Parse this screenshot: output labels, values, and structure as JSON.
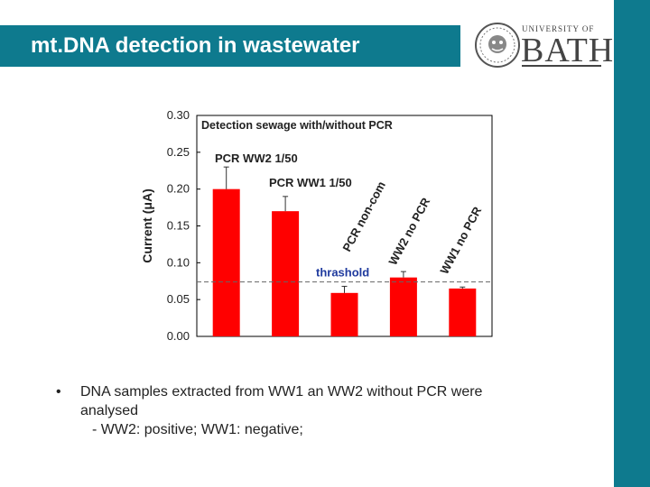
{
  "slide": {
    "title": "mt.DNA detection in wastewater",
    "logo": {
      "top_text": "UNIVERSITY OF",
      "main_text": "BATH"
    }
  },
  "bullets": {
    "marker": "•",
    "line1": "DNA samples extracted from WW1 an WW2 without PCR  were",
    "line2": "analysed",
    "line3": "- WW2: positive; WW1: negative;"
  },
  "chart_data": {
    "type": "bar",
    "title": "Detection sewage with/without PCR",
    "ylabel": "Current (μA)",
    "xlabel": "",
    "ylim": [
      0,
      0.3
    ],
    "yticks": [
      "0.00",
      "0.05",
      "0.10",
      "0.15",
      "0.20",
      "0.25",
      "0.30"
    ],
    "categories": [
      "PCR WW2 1/50",
      "PCR WW1 1/50",
      "PCR non-com",
      "WW2 no PCR",
      "WW1 no PCR"
    ],
    "values": [
      0.2,
      0.17,
      0.059,
      0.08,
      0.065
    ],
    "errors": [
      0.03,
      0.02,
      0.009,
      0.008,
      0.002
    ],
    "threshold": {
      "label": "thrashold",
      "value": 0.074
    },
    "colors": {
      "bar": "#ff0000",
      "threshold_label": "#1f3a9e"
    }
  }
}
